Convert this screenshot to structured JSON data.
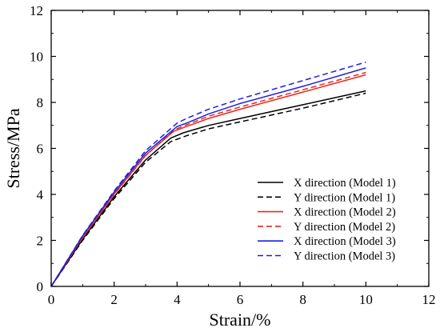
{
  "chart_data": {
    "type": "line",
    "title": "",
    "xlabel": "Strain/%",
    "ylabel": "Stress/MPa",
    "xlim": [
      0,
      12
    ],
    "ylim": [
      0,
      12
    ],
    "xticks": [
      "0",
      "2",
      "4",
      "6",
      "8",
      "10",
      "12"
    ],
    "yticks": [
      "0",
      "2",
      "4",
      "6",
      "8",
      "10",
      "12"
    ],
    "grid": false,
    "legend_position": "bottom-right",
    "series": [
      {
        "name": "X direction (Model 1)",
        "color": "#000000",
        "dashed": false,
        "x": [
          0,
          1,
          2,
          3,
          3.8,
          4.2,
          5,
          6,
          8,
          10
        ],
        "y": [
          0,
          2.05,
          3.9,
          5.5,
          6.45,
          6.68,
          7.0,
          7.3,
          7.9,
          8.5
        ]
      },
      {
        "name": "Y direction (Model 1)",
        "color": "#000000",
        "dashed": true,
        "x": [
          0,
          1,
          2,
          3,
          3.8,
          4.3,
          5,
          6,
          8,
          10
        ],
        "y": [
          0,
          2.0,
          3.82,
          5.4,
          6.3,
          6.55,
          6.85,
          7.15,
          7.75,
          8.4
        ]
      },
      {
        "name": "X direction (Model 2)",
        "color": "#e8281e",
        "dashed": false,
        "x": [
          0,
          1,
          2,
          3,
          3.9,
          4.2,
          5,
          6,
          8,
          10
        ],
        "y": [
          0,
          2.15,
          4.02,
          5.7,
          6.75,
          6.9,
          7.3,
          7.7,
          8.45,
          9.2
        ]
      },
      {
        "name": "Y direction (Model 2)",
        "color": "#e8281e",
        "dashed": true,
        "x": [
          0,
          1,
          2,
          3,
          3.9,
          4.2,
          5,
          6,
          8,
          10
        ],
        "y": [
          0,
          2.12,
          4.0,
          5.68,
          6.8,
          6.97,
          7.4,
          7.8,
          8.55,
          9.3
        ]
      },
      {
        "name": "X direction (Model 3)",
        "color": "#1f1fe0",
        "dashed": false,
        "x": [
          0,
          1,
          2,
          3,
          4.0,
          4.3,
          5,
          6,
          8,
          10
        ],
        "y": [
          0,
          2.2,
          4.1,
          5.8,
          6.95,
          7.1,
          7.5,
          7.95,
          8.7,
          9.5
        ]
      },
      {
        "name": "Y direction (Model 3)",
        "color": "#1f1fe0",
        "dashed": true,
        "x": [
          0,
          1,
          2,
          3,
          4.0,
          4.3,
          5,
          6,
          8,
          10
        ],
        "y": [
          0,
          2.22,
          4.15,
          5.9,
          7.1,
          7.3,
          7.7,
          8.15,
          8.95,
          9.75
        ]
      }
    ]
  }
}
